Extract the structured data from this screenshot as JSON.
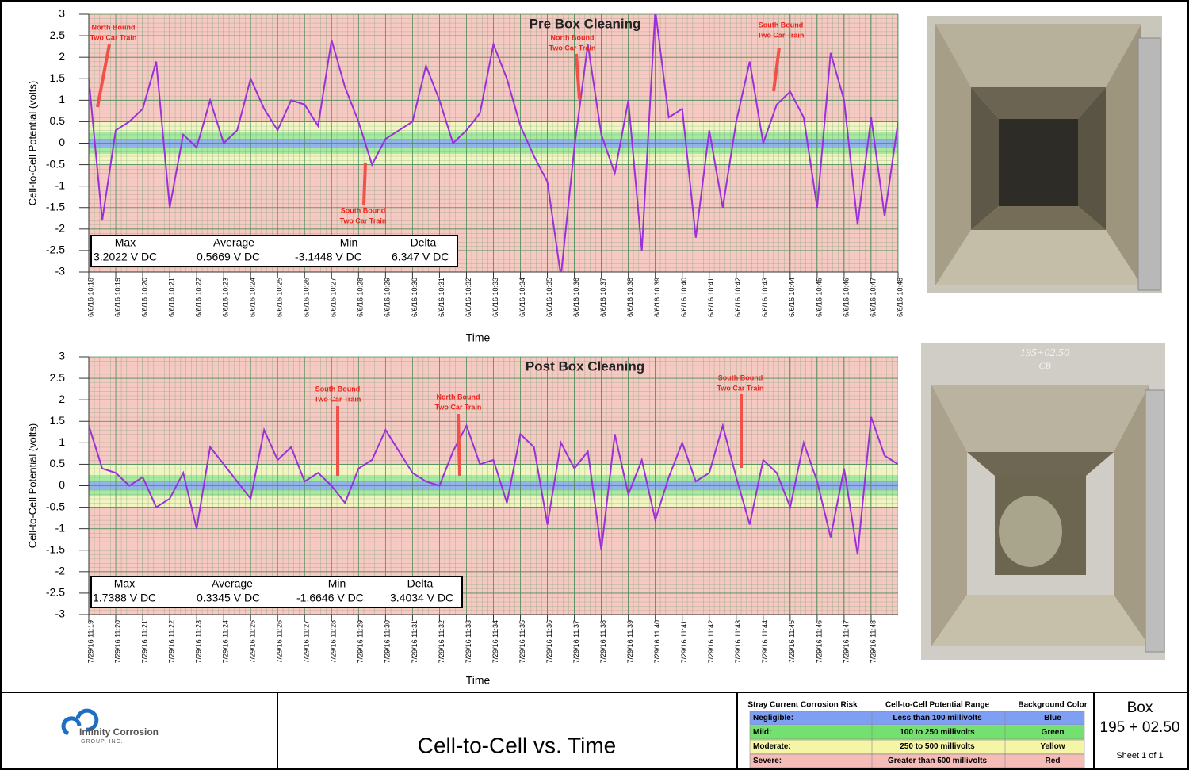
{
  "chart_data": [
    {
      "type": "line",
      "title": "Pre Box Cleaning",
      "xlabel": "Time",
      "ylabel": "Cell-to-Cell Potential (volts)",
      "xlim": [
        0,
        30
      ],
      "ylim": [
        -3,
        3
      ],
      "yticks": [
        -3,
        -2.5,
        -2,
        -1.5,
        -1,
        -0.5,
        0,
        0.5,
        1,
        1.5,
        2,
        2.5,
        3
      ],
      "xticks": [
        {
          "value": 0,
          "label": "6/6/16 10:18"
        },
        {
          "value": 1,
          "label": "6/6/16 10:19"
        },
        {
          "value": 2,
          "label": "6/6/16 10:20"
        },
        {
          "value": 3,
          "label": "6/6/16 10:21"
        },
        {
          "value": 4,
          "label": "6/6/16 10:22"
        },
        {
          "value": 5,
          "label": "6/6/16 10:23"
        },
        {
          "value": 6,
          "label": "6/6/16 10:24"
        },
        {
          "value": 7,
          "label": "6/6/16 10:25"
        },
        {
          "value": 8,
          "label": "6/6/16 10:26"
        },
        {
          "value": 9,
          "label": "6/6/16 10:27"
        },
        {
          "value": 10,
          "label": "6/6/16 10:28"
        },
        {
          "value": 11,
          "label": "6/6/16 10:29"
        },
        {
          "value": 12,
          "label": "6/6/16 10:30"
        },
        {
          "value": 13,
          "label": "6/6/16 10:31"
        },
        {
          "value": 14,
          "label": "6/6/16 10:32"
        },
        {
          "value": 15,
          "label": "6/6/16 10:33"
        },
        {
          "value": 16,
          "label": "6/6/16 10:34"
        },
        {
          "value": 17,
          "label": "6/6/16 10:35"
        },
        {
          "value": 18,
          "label": "6/6/16 10:36"
        },
        {
          "value": 19,
          "label": "6/6/16 10:37"
        },
        {
          "value": 20,
          "label": "6/6/16 10:38"
        },
        {
          "value": 21,
          "label": "6/6/16 10:39"
        },
        {
          "value": 22,
          "label": "6/6/16 10:40"
        },
        {
          "value": 23,
          "label": "6/6/16 10:41"
        },
        {
          "value": 24,
          "label": "6/6/16 10:42"
        },
        {
          "value": 25,
          "label": "6/6/16 10:43"
        },
        {
          "value": 26,
          "label": "6/6/16 10:44"
        },
        {
          "value": 27,
          "label": "6/6/16 10:45"
        },
        {
          "value": 28,
          "label": "6/6/16 10:46"
        },
        {
          "value": 29,
          "label": "6/6/16 10:47"
        },
        {
          "value": 30,
          "label": "6/6/16 10:48"
        }
      ],
      "bands": [
        {
          "limit": 0.5,
          "color": "#f2f5c2"
        },
        {
          "limit": 0.25,
          "color": "#a6eaa0"
        },
        {
          "limit": 0.1,
          "color": "#93b4ea"
        }
      ],
      "background": "#f7c9c3",
      "grid": true,
      "series": [
        {
          "color": "#9b30d9",
          "x": [
            0,
            0.5,
            1,
            1.5,
            2,
            2.5,
            3,
            3.5,
            4,
            4.5,
            5,
            5.5,
            6,
            6.5,
            7,
            7.5,
            8,
            8.5,
            9,
            9.5,
            10,
            10.5,
            11,
            11.5,
            12,
            12.5,
            13,
            13.5,
            14,
            14.5,
            15,
            15.5,
            16,
            16.5,
            17,
            17.5,
            18,
            18.5,
            19,
            19.5,
            20,
            20.5,
            21,
            21.5,
            22,
            22.5,
            23,
            23.5,
            24,
            24.5,
            25,
            25.5,
            26,
            26.5,
            27,
            27.5,
            28,
            28.5,
            29,
            29.5,
            30
          ],
          "values": [
            1.5,
            -1.8,
            0.3,
            0.5,
            0.8,
            1.9,
            -1.5,
            0.2,
            -0.1,
            1.0,
            0.0,
            0.3,
            1.5,
            0.8,
            0.3,
            1.0,
            0.9,
            0.4,
            2.4,
            1.3,
            0.5,
            -0.5,
            0.1,
            0.3,
            0.5,
            1.8,
            1.0,
            0.0,
            0.3,
            0.7,
            2.3,
            1.5,
            0.4,
            -0.3,
            -0.9,
            -3.1,
            -0.1,
            2.3,
            0.2,
            -0.7,
            1.0,
            -2.5,
            3.1,
            0.6,
            0.8,
            -2.2,
            0.3,
            -1.5,
            0.5,
            1.9,
            0.0,
            0.9,
            1.2,
            0.6,
            -1.5,
            2.1,
            1.0,
            -1.9,
            0.6,
            -1.7,
            0.5
          ]
        }
      ],
      "stats": {
        "labels": [
          "Max",
          "Average",
          "Min",
          "Delta"
        ],
        "values": [
          "3.2022 V DC",
          "0.5669 V DC",
          "-3.1448 V DC",
          "6.347 V DC"
        ]
      },
      "annotations": [
        [
          "North Bound",
          "Two Car Train"
        ],
        [
          "South Bound",
          "Two Car Train"
        ],
        [
          "North Bound",
          "Two Car Train"
        ],
        [
          "South Bound",
          "Two Car Train"
        ]
      ]
    },
    {
      "type": "line",
      "title": "Post Box Cleaning",
      "xlabel": "Time",
      "ylabel": "Cell-to-Cell Potential (volts)",
      "xlim": [
        0,
        30
      ],
      "ylim": [
        -3,
        3
      ],
      "yticks": [
        -3,
        -2.5,
        -2,
        -1.5,
        -1,
        -0.5,
        0,
        0.5,
        1,
        1.5,
        2,
        2.5,
        3
      ],
      "xticks": [
        {
          "value": 0,
          "label": "7/29/16 11:19"
        },
        {
          "value": 1,
          "label": "7/29/16 11:20"
        },
        {
          "value": 2,
          "label": "7/29/16 11:21"
        },
        {
          "value": 3,
          "label": "7/29/16 11:22"
        },
        {
          "value": 4,
          "label": "7/29/16 11:23"
        },
        {
          "value": 5,
          "label": "7/29/16 11:24"
        },
        {
          "value": 6,
          "label": "7/29/16 11:25"
        },
        {
          "value": 7,
          "label": "7/29/16 11:26"
        },
        {
          "value": 8,
          "label": "7/29/16 11:27"
        },
        {
          "value": 9,
          "label": "7/29/16 11:28"
        },
        {
          "value": 10,
          "label": "7/29/16 11:29"
        },
        {
          "value": 11,
          "label": "7/29/16 11:30"
        },
        {
          "value": 12,
          "label": "7/29/16 11:31"
        },
        {
          "value": 13,
          "label": "7/29/16 11:32"
        },
        {
          "value": 14,
          "label": "7/29/16 11:33"
        },
        {
          "value": 15,
          "label": "7/29/16 11:34"
        },
        {
          "value": 16,
          "label": "7/29/16 11:35"
        },
        {
          "value": 17,
          "label": "7/29/16 11:36"
        },
        {
          "value": 18,
          "label": "7/29/16 11:37"
        },
        {
          "value": 19,
          "label": "7/29/16 11:38"
        },
        {
          "value": 20,
          "label": "7/29/16 11:39"
        },
        {
          "value": 21,
          "label": "7/29/16 11:40"
        },
        {
          "value": 22,
          "label": "7/29/16 11:41"
        },
        {
          "value": 23,
          "label": "7/29/16 11:42"
        },
        {
          "value": 24,
          "label": "7/29/16 11:43"
        },
        {
          "value": 25,
          "label": "7/29/16 11:44"
        },
        {
          "value": 26,
          "label": "7/29/16 11:45"
        },
        {
          "value": 27,
          "label": "7/29/16 11:46"
        },
        {
          "value": 28,
          "label": "7/29/16 11:47"
        },
        {
          "value": 29,
          "label": "7/29/16 11:48"
        }
      ],
      "bands": [
        {
          "limit": 0.5,
          "color": "#f2f5c2"
        },
        {
          "limit": 0.25,
          "color": "#a6eaa0"
        },
        {
          "limit": 0.1,
          "color": "#93b4ea"
        }
      ],
      "background": "#f7c9c3",
      "grid": true,
      "series": [
        {
          "color": "#9b30d9",
          "x": [
            0,
            0.5,
            1,
            1.5,
            2,
            2.5,
            3,
            3.5,
            4,
            4.5,
            5,
            5.5,
            6,
            6.5,
            7,
            7.5,
            8,
            8.5,
            9,
            9.5,
            10,
            10.5,
            11,
            11.5,
            12,
            12.5,
            13,
            13.5,
            14,
            14.5,
            15,
            15.5,
            16,
            16.5,
            17,
            17.5,
            18,
            18.5,
            19,
            19.5,
            20,
            20.5,
            21,
            21.5,
            22,
            22.5,
            23,
            23.5,
            24,
            24.5,
            25,
            25.5,
            26,
            26.5,
            27,
            27.5,
            28,
            28.5,
            29,
            29.5,
            30
          ],
          "values": [
            1.4,
            0.4,
            0.3,
            0.0,
            0.2,
            -0.5,
            -0.3,
            0.3,
            -1.0,
            0.9,
            0.5,
            0.1,
            -0.3,
            1.3,
            0.6,
            0.9,
            0.1,
            0.3,
            0.0,
            -0.4,
            0.4,
            0.6,
            1.3,
            0.8,
            0.3,
            0.1,
            0.0,
            0.8,
            1.4,
            0.5,
            0.6,
            -0.4,
            1.2,
            0.9,
            -0.9,
            1.0,
            0.4,
            0.8,
            -1.5,
            1.2,
            -0.2,
            0.6,
            -0.8,
            0.2,
            1.0,
            0.1,
            0.3,
            1.4,
            0.2,
            -0.9,
            0.6,
            0.3,
            -0.5,
            1.0,
            0.1,
            -1.2,
            0.4,
            -1.6,
            1.6,
            0.7,
            0.5
          ]
        }
      ],
      "stats": {
        "labels": [
          "Max",
          "Average",
          "Min",
          "Delta"
        ],
        "values": [
          "1.7388 V DC",
          "0.3345 V DC",
          "-1.6646 V DC",
          "3.4034 V DC"
        ]
      },
      "annotations": [
        [
          "South Bound",
          "Two Car Train"
        ],
        [
          "North Bound",
          "Two Car Train"
        ],
        [
          "South Bound",
          "Two Car Train"
        ]
      ]
    }
  ],
  "photo_caption": [
    "195+02.50",
    "CB"
  ],
  "title_block": {
    "company": [
      "Infinity Corrosion",
      "GROUP, INC."
    ],
    "title": "Cell-to-Cell vs. Time",
    "risk_table": {
      "headers": [
        "Stray Current Corrosion Risk",
        "Cell-to-Cell Potential Range",
        "Background Color"
      ],
      "rows": [
        [
          "Negligible:",
          "Less than 100 millivolts",
          "Blue"
        ],
        [
          "Mild:",
          "100 to 250 millivolts",
          "Green"
        ],
        [
          "Moderate:",
          "250 to 500 millivolts",
          "Yellow"
        ],
        [
          "Severe:",
          "Greater than 500 millivolts",
          "Red"
        ]
      ],
      "colors": [
        "#7f9ff2",
        "#74e070",
        "#f5f5a6",
        "#f6bcb8"
      ]
    },
    "box": [
      "Box",
      "195 + 02.50"
    ],
    "sheet": "Sheet 1 of 1"
  }
}
